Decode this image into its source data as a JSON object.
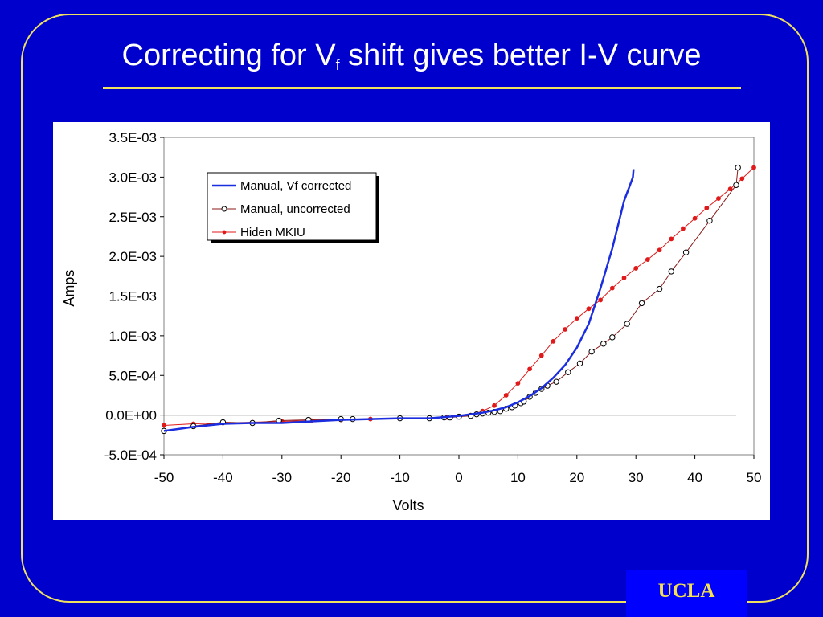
{
  "slide": {
    "title_main": "Correcting for V",
    "title_sub": "f",
    "title_rest": " shift gives better I-V curve",
    "badge": "UCLA"
  },
  "colors": {
    "background": "#0000cc",
    "accent_line": "#f0e060",
    "corrected": "#1a2ee0",
    "uncorrected": "#8b1a1a",
    "hiden": "#e01a1a"
  },
  "chart_data": {
    "type": "line",
    "xlabel": "Volts",
    "ylabel": "Amps",
    "xlim": [
      -50,
      50
    ],
    "ylim": [
      -0.0005,
      0.0035
    ],
    "x_ticks": [
      -50,
      -40,
      -30,
      -20,
      -10,
      0,
      10,
      20,
      30,
      40,
      50
    ],
    "x_tick_labels": [
      "-50",
      "-40",
      "-30",
      "-20",
      "-10",
      "0",
      "10",
      "20",
      "30",
      "40",
      "50"
    ],
    "y_ticks": [
      -0.0005,
      0,
      0.0005,
      0.001,
      0.0015,
      0.002,
      0.0025,
      0.003,
      0.0035
    ],
    "y_tick_labels": [
      "-5.0E-04",
      "0.0E+00",
      "5.0E-04",
      "1.0E-03",
      "1.5E-03",
      "2.0E-03",
      "2.5E-03",
      "3.0E-03",
      "3.5E-03"
    ],
    "legend_position": "top-left",
    "grid": false,
    "series": [
      {
        "name": "Manual, Vf corrected",
        "style": "line",
        "x": [
          -50,
          -45,
          -40,
          -35,
          -30,
          -25,
          -20,
          -15,
          -10,
          -5,
          0,
          2,
          4,
          6,
          8,
          10,
          12,
          14,
          16,
          18,
          20,
          22,
          24,
          26,
          27,
          28,
          29,
          29.5,
          29.6
        ],
        "y": [
          -0.0002,
          -0.00015,
          -0.00011,
          -0.0001,
          -0.0001,
          -8e-05,
          -6e-05,
          -5e-05,
          -4e-05,
          -4e-05,
          -1e-05,
          1e-05,
          3e-05,
          6e-05,
          0.0001,
          0.00016,
          0.00024,
          0.00034,
          0.00047,
          0.00063,
          0.00085,
          0.00115,
          0.0016,
          0.0021,
          0.0024,
          0.0027,
          0.0029,
          0.003,
          0.0031
        ]
      },
      {
        "name": "Manual, uncorrected",
        "style": "line-open-circle",
        "x": [
          -50,
          -45,
          -40,
          -35,
          -30.5,
          -25.5,
          -20,
          -18,
          -10,
          -5,
          -2.5,
          -1.5,
          0,
          2,
          3,
          4,
          5,
          6,
          7,
          8,
          9,
          9.5,
          10.5,
          11,
          12,
          13,
          14,
          15,
          16.5,
          18.5,
          20.5,
          22.5,
          24.5,
          26,
          28.5,
          31,
          34,
          36,
          38.5,
          42.5,
          47,
          47.3
        ],
        "y": [
          -0.0002,
          -0.00014,
          -9e-05,
          -0.0001,
          -7e-05,
          -6e-05,
          -5e-05,
          -5e-05,
          -4e-05,
          -4e-05,
          -3e-05,
          -3e-05,
          -2e-05,
          -1e-05,
          1e-05,
          2e-05,
          3e-05,
          4e-05,
          5e-05,
          8e-05,
          0.0001,
          0.00012,
          0.00015,
          0.00017,
          0.00023,
          0.00028,
          0.00033,
          0.00037,
          0.00042,
          0.00054,
          0.00065,
          0.0008,
          0.0009,
          0.00098,
          0.00115,
          0.00141,
          0.00159,
          0.00181,
          0.00205,
          0.00245,
          0.0029,
          0.00312
        ]
      },
      {
        "name": "Hiden MKIU",
        "style": "line-small-dot",
        "x": [
          -50,
          -45,
          -40,
          -35,
          -30,
          -25,
          -20,
          -15,
          -10,
          -5,
          -2,
          0,
          2,
          4,
          6,
          8,
          10,
          12,
          14,
          16,
          18,
          20,
          22,
          24,
          26,
          28,
          30,
          32,
          34,
          36,
          38,
          40,
          42,
          44,
          46,
          48,
          50
        ],
        "y": [
          -0.00013,
          -0.00011,
          -0.0001,
          -9e-05,
          -8e-05,
          -7e-05,
          -6e-05,
          -5e-05,
          -4e-05,
          -4e-05,
          -3e-05,
          -2e-05,
          0,
          5e-05,
          0.00012,
          0.00025,
          0.0004,
          0.00058,
          0.00075,
          0.00093,
          0.00108,
          0.00122,
          0.00134,
          0.00145,
          0.0016,
          0.00173,
          0.00185,
          0.00196,
          0.00208,
          0.00222,
          0.00235,
          0.00248,
          0.00261,
          0.00273,
          0.00285,
          0.00298,
          0.00312
        ]
      }
    ]
  }
}
